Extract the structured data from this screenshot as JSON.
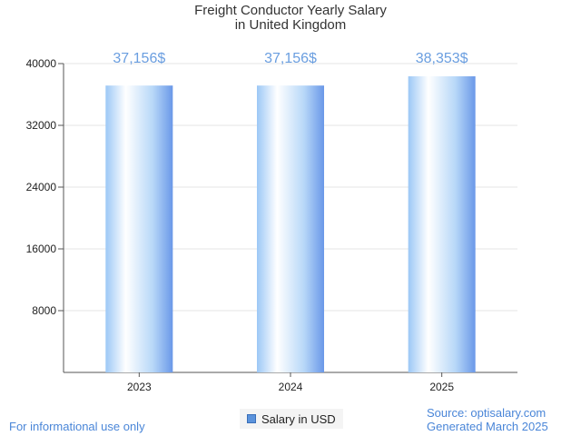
{
  "chart_data": {
    "type": "bar",
    "title": "Freight Conductor Yearly Salary",
    "subtitle": "in United Kingdom",
    "categories": [
      "2023",
      "2024",
      "2025"
    ],
    "series": [
      {
        "name": "Salary in USD",
        "values": [
          37156,
          37156,
          38353
        ]
      }
    ],
    "data_labels": [
      "37,156$",
      "37,156$",
      "38,353$"
    ],
    "yticks": [
      8000,
      16000,
      24000,
      32000,
      40000
    ],
    "ylim": [
      0,
      40000
    ],
    "grid": true,
    "legend": "bottom-center"
  },
  "footer": {
    "disclaimer": "For informational use only",
    "source": "Source: optisalary.com",
    "generated": "Generated March 2025"
  },
  "colors": {
    "bar_light": "#ffffff",
    "bar_mid": "#aed4f8",
    "bar_dark": "#6a98e8",
    "label": "#6a9ee0",
    "footer": "#4a86d8"
  }
}
